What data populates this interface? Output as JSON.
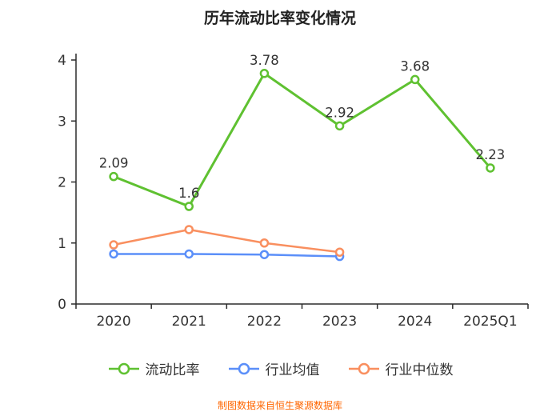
{
  "title": "历年流动比率变化情况",
  "footer": "制图数据来自恒生聚源数据库",
  "colors": {
    "axis": "#2b2b2b",
    "label_text": "#333333",
    "footer_text": "#ff6600",
    "series_current_ratio": "#5fc131",
    "series_industry_avg": "#5b8ff9",
    "series_industry_median": "#f98f5f"
  },
  "chart_data": {
    "type": "line",
    "categories": [
      "2020",
      "2021",
      "2022",
      "2023",
      "2024",
      "2025Q1"
    ],
    "series": [
      {
        "name": "流动比率",
        "color": "#5fc131",
        "labeled": true,
        "values": [
          2.09,
          1.6,
          3.78,
          2.92,
          3.68,
          2.23
        ]
      },
      {
        "name": "行业均值",
        "color": "#5b8ff9",
        "labeled": false,
        "values": [
          0.82,
          0.82,
          0.81,
          0.78,
          null,
          null
        ]
      },
      {
        "name": "行业中位数",
        "color": "#f98f5f",
        "labeled": false,
        "values": [
          0.97,
          1.22,
          1.0,
          0.85,
          null,
          null
        ]
      }
    ],
    "ylim": [
      0,
      4
    ],
    "yticks": [
      0,
      1,
      2,
      3,
      4
    ],
    "grid": false,
    "legend_position": "bottom"
  }
}
